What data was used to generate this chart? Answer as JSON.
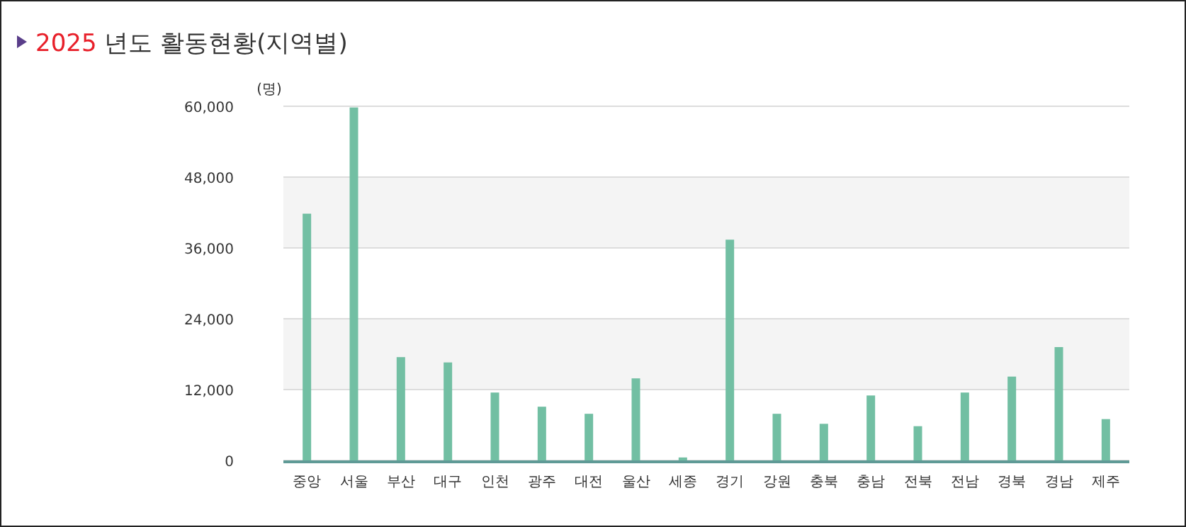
{
  "chart_data": {
    "type": "bar",
    "title": "2025 년도 활동현황(지역별)",
    "ylabel": "(명)",
    "categories": [
      "중앙",
      "서울",
      "부산",
      "대구",
      "인천",
      "광주",
      "대전",
      "울산",
      "세종",
      "경기",
      "강원",
      "충북",
      "충남",
      "전북",
      "전남",
      "경북",
      "경남",
      "제주"
    ],
    "series": [
      {
        "color": "#72bfa3",
        "values": [
          41800,
          59800,
          17500,
          16600,
          11500,
          9100,
          7900,
          13900,
          500,
          37400,
          7900,
          6200,
          11000,
          5800,
          11500,
          14200,
          19200,
          7000
        ]
      }
    ],
    "ylim": [
      0,
      60000
    ],
    "yticks": [
      0,
      {
        "value": 12000,
        "label": "12,000"
      },
      {
        "value": 24000,
        "label": "24,000"
      },
      {
        "value": 36000,
        "label": "36,000"
      },
      {
        "value": 48000,
        "label": "48,000"
      },
      {
        "value": 60000,
        "label": "60,000"
      }
    ],
    "bands": [
      {
        "axis": "y",
        "from": 12000,
        "to": 24000,
        "color": "#f4f4f4"
      },
      {
        "axis": "y",
        "from": 36000,
        "to": 48000,
        "color": "#f4f4f4"
      }
    ],
    "grid": "y"
  }
}
